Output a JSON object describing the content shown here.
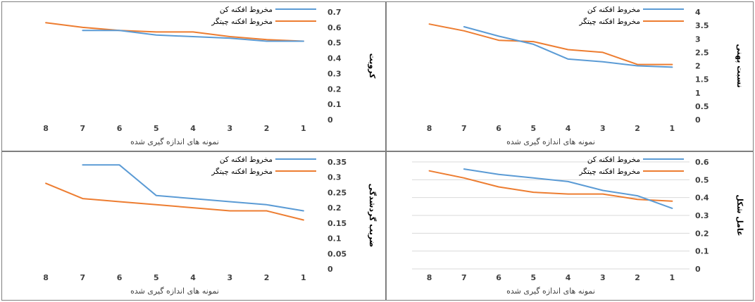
{
  "colors": {
    "blue": "#5b9bd5",
    "orange": "#ed7d31"
  },
  "chart_data": [
    {
      "type": "line",
      "categories": [
        "8",
        "7",
        "6",
        "5",
        "4",
        "3",
        "2",
        "1"
      ],
      "xlabel": "نمونه های اندازه گیری شده",
      "ylabel": "کرویت",
      "ylim": [
        0,
        0.7
      ],
      "yticks": [
        "0",
        "0.1",
        "0.2",
        "0.3",
        "0.4",
        "0.5",
        "0.6",
        "0.7"
      ],
      "grid": false,
      "legend": "top-right",
      "series": [
        {
          "name": "مخروط افکنه کن",
          "color": "#5b9bd5",
          "values": [
            null,
            0.58,
            0.58,
            0.55,
            0.54,
            0.53,
            0.51,
            0.51
          ]
        },
        {
          "name": "مخروط افکنه چیتگر",
          "color": "#ed7d31",
          "values": [
            0.63,
            0.6,
            0.58,
            0.57,
            0.57,
            0.54,
            0.52,
            0.51
          ]
        }
      ]
    },
    {
      "type": "line",
      "categories": [
        "8",
        "7",
        "6",
        "5",
        "4",
        "3",
        "2",
        "1"
      ],
      "xlabel": "نمونه های اندازه گیری شده",
      "ylabel": "نسبت پهنی",
      "ylim": [
        0,
        4
      ],
      "yticks": [
        "0",
        "0.5",
        "1",
        "1.5",
        "2",
        "2.5",
        "3",
        "3.5",
        "4"
      ],
      "grid": false,
      "legend": "top-right",
      "series": [
        {
          "name": "مخروط افکنه کن",
          "color": "#5b9bd5",
          "values": [
            null,
            3.45,
            3.1,
            2.8,
            2.25,
            2.15,
            2.0,
            1.95
          ]
        },
        {
          "name": "مخروط افکنه چیتگر",
          "color": "#ed7d31",
          "values": [
            3.55,
            3.3,
            2.95,
            2.9,
            2.6,
            2.5,
            2.05,
            2.05
          ]
        }
      ]
    },
    {
      "type": "line",
      "categories": [
        "8",
        "7",
        "6",
        "5",
        "4",
        "3",
        "2",
        "1"
      ],
      "xlabel": "نمونه های اندازه گیری شده",
      "ylabel": "ضریب گردشدگی",
      "ylim": [
        0,
        0.35
      ],
      "yticks": [
        "0",
        "0.05",
        "0.1",
        "0.15",
        "0.2",
        "0.25",
        "0.3",
        "0.35"
      ],
      "grid": false,
      "legend": "top-right",
      "series": [
        {
          "name": "مخروط افکنه کن",
          "color": "#5b9bd5",
          "values": [
            null,
            0.34,
            0.34,
            0.24,
            0.23,
            0.22,
            0.21,
            0.19
          ]
        },
        {
          "name": "مخروط افکنه چیتگر",
          "color": "#ed7d31",
          "values": [
            0.28,
            0.23,
            0.22,
            0.21,
            0.2,
            0.19,
            0.19,
            0.16
          ]
        }
      ]
    },
    {
      "type": "line",
      "categories": [
        "8",
        "7",
        "6",
        "5",
        "4",
        "3",
        "2",
        "1"
      ],
      "xlabel": "نمونه های اندازه گیری شده",
      "ylabel": "عامل شکل",
      "ylim": [
        0,
        0.6
      ],
      "yticks": [
        "0",
        "0.1",
        "0.2",
        "0.3",
        "0.4",
        "0.5",
        "0.6"
      ],
      "grid": true,
      "legend": "top-right",
      "series": [
        {
          "name": "مخروط افکنه کن",
          "color": "#5b9bd5",
          "values": [
            null,
            0.56,
            0.53,
            0.51,
            0.49,
            0.44,
            0.41,
            0.34
          ]
        },
        {
          "name": "مخروط افکنه چیتگر",
          "color": "#ed7d31",
          "values": [
            0.55,
            0.51,
            0.46,
            0.43,
            0.42,
            0.42,
            0.39,
            0.38
          ]
        }
      ]
    }
  ]
}
